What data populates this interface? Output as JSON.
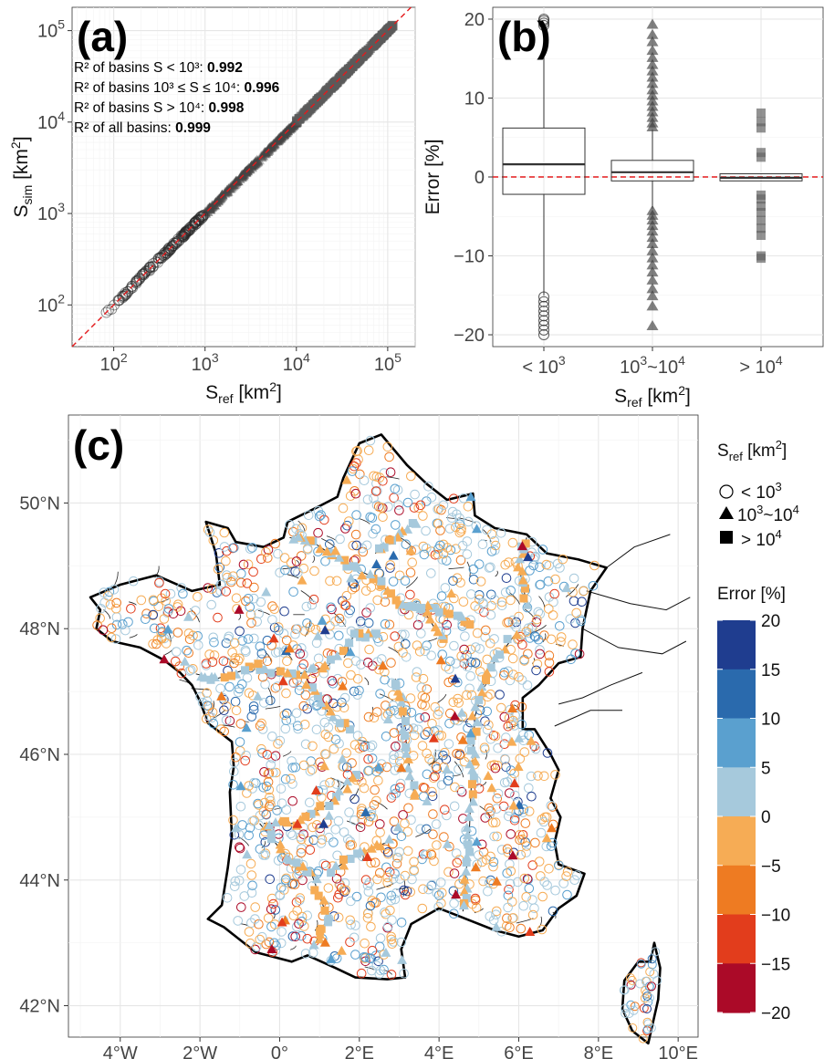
{
  "chart_data": [
    {
      "panel": "(a)",
      "type": "scatter",
      "xlabel_base": "S",
      "xlabel_sub": "ref",
      "xlabel_unit_pre": " [km",
      "xlabel_unit_sup": "2",
      "xlabel_unit_post": "]",
      "ylabel_base": "S",
      "ylabel_sub": "sim",
      "ylabel_unit_pre": " [km",
      "ylabel_unit_sup": "2",
      "ylabel_unit_post": "]",
      "x_scale": "log",
      "y_scale": "log",
      "xlim": [
        35,
        200000
      ],
      "ylim": [
        35,
        180000
      ],
      "x_ticks": [
        100,
        1000,
        10000,
        100000
      ],
      "y_ticks": [
        100,
        1000,
        10000,
        100000
      ],
      "tick_base": "10",
      "tick_exponents": [
        "2",
        "3",
        "4",
        "5"
      ],
      "reference_line": "1:1 dashed red",
      "annotations": [
        {
          "text": "R² of basins S < 10³: ",
          "value": "0.992"
        },
        {
          "text": "R² of basins 10³ ≤ S ≤ 10⁴: ",
          "value": "0.996"
        },
        {
          "text": "R² of basins S > 10⁴: ",
          "value": "0.998"
        },
        {
          "text": "R² of all basins: ",
          "value": "0.999"
        }
      ],
      "series_range": {
        "x_min": 65,
        "x_max": 115000
      }
    },
    {
      "panel": "(b)",
      "type": "box",
      "ylabel": "Error [%]",
      "xlabel_base": "S",
      "xlabel_sub": "ref",
      "xlabel_unit_pre": " [km",
      "xlabel_unit_sup": "2",
      "xlabel_unit_post": "]",
      "ylim": [
        -21.5,
        21.5
      ],
      "y_ticks": [
        -20,
        -10,
        0,
        10,
        20
      ],
      "y_tick_labels": [
        "−20",
        "−10",
        "0",
        "10",
        "20"
      ],
      "reference_line": "y = 0 dashed red",
      "groups": [
        {
          "label_pre": "< 10",
          "label_sup": "3",
          "label_mid": "",
          "label_sup2": "",
          "marker": "circle",
          "q1": -2.2,
          "median": 1.6,
          "q3": 6.2,
          "whisker_low": -15.0,
          "whisker_high": 19.0,
          "outliers": [
            19.2,
            19.5,
            19.8,
            20.0,
            -15.2,
            -15.8,
            -16.4,
            -17.0,
            -17.6,
            -18.2,
            -18.8,
            -19.4,
            -20.0
          ]
        },
        {
          "label_pre": "10",
          "label_sup": "3",
          "label_mid": "~10",
          "label_sup2": "4",
          "marker": "triangle",
          "q1": -0.5,
          "median": 0.6,
          "q3": 2.1,
          "whisker_low": -4.0,
          "whisker_high": 6.0,
          "outliers": [
            19.3,
            18.0,
            17.1,
            16.0,
            15.1,
            14.2,
            13.4,
            12.6,
            11.8,
            11.0,
            10.3,
            9.6,
            8.9,
            8.2,
            7.5,
            6.8,
            6.3,
            -4.3,
            -4.9,
            -5.5,
            -6.2,
            -6.9,
            -7.7,
            -8.5,
            -9.4,
            -10.3,
            -11.2,
            -12.1,
            -13.1,
            -14.2,
            -15.1,
            -16.4,
            -18.9
          ]
        },
        {
          "label_pre": "> 10",
          "label_sup": "4",
          "label_mid": "",
          "label_sup2": "",
          "marker": "square",
          "q1": -0.5,
          "median": -0.1,
          "q3": 0.4,
          "whisker_low": -0.5,
          "whisker_high": 0.4,
          "outliers": [
            8.1,
            7.0,
            6.2,
            3.1,
            2.5,
            -2.3,
            -2.8,
            -3.7,
            -4.5,
            -5.5,
            -6.5,
            -7.4,
            -10.0,
            -10.3
          ]
        }
      ]
    },
    {
      "panel": "(c)",
      "type": "map",
      "region": "France",
      "lon_range": [
        -5.3,
        10.5
      ],
      "lat_range": [
        41.5,
        51.4
      ],
      "x_ticks": [
        -4,
        -2,
        0,
        2,
        4,
        6,
        8,
        10
      ],
      "x_tick_labels": [
        "4°W",
        "2°W",
        "0°",
        "2°E",
        "4°E",
        "6°E",
        "8°E",
        "10°E"
      ],
      "y_ticks": [
        42,
        44,
        46,
        48,
        50
      ],
      "y_tick_labels": [
        "42°N",
        "44°N",
        "46°N",
        "48°N",
        "50°N"
      ],
      "shape_legend": {
        "title_base": "S",
        "title_sub": "ref",
        "title_unit_pre": " [km",
        "title_unit_sup": "2",
        "title_unit_post": "]",
        "items": [
          {
            "marker": "circle",
            "label_pre": "< 10",
            "label_sup": "3",
            "label_mid": "",
            "label_sup2": ""
          },
          {
            "marker": "triangle",
            "label_pre": "10",
            "label_sup": "3",
            "label_mid": "~10",
            "label_sup2": "4"
          },
          {
            "marker": "square",
            "label_pre": "> 10",
            "label_sup": "4",
            "label_mid": "",
            "label_sup2": ""
          }
        ]
      },
      "color_legend": {
        "title": "Error [%]",
        "breaks": [
          20,
          15,
          10,
          5,
          0,
          -5,
          -10,
          -15,
          -20
        ],
        "break_labels": [
          "20",
          "15",
          "10",
          "5",
          "0",
          "−5",
          "−10",
          "−15",
          "−20"
        ],
        "colors": [
          "#1f3d8f",
          "#2a6aad",
          "#5aa0cf",
          "#a6c9dc",
          "#f6ac55",
          "#ee7b22",
          "#e23d1c",
          "#ab0a28"
        ]
      }
    }
  ]
}
